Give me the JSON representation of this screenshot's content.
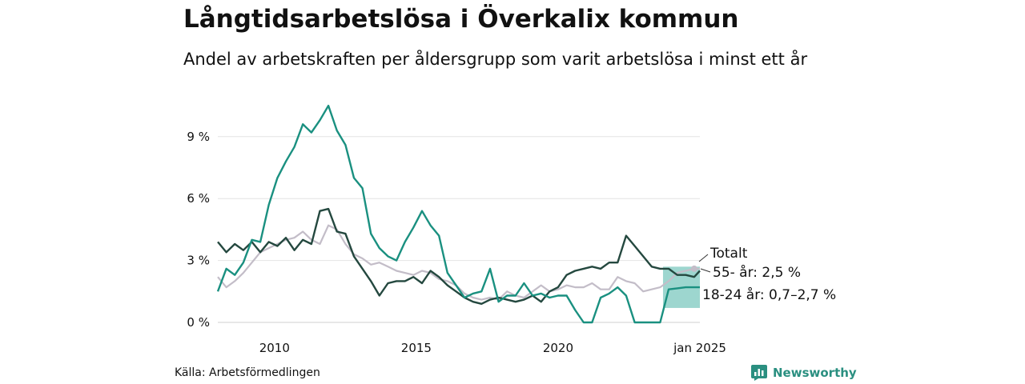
{
  "chart_data": {
    "type": "line",
    "title": "Långtidsarbetslösa i Överkalix kommun",
    "subtitle": "Andel av arbetskraften per åldersgrupp som varit arbetslösa i minst ett år",
    "x_range": [
      2008.0,
      2025.0
    ],
    "y_range": [
      0,
      11.5
    ],
    "y_ticks": [
      {
        "value": 0,
        "label": "0 %"
      },
      {
        "value": 3,
        "label": "3 %"
      },
      {
        "value": 6,
        "label": "6 %"
      },
      {
        "value": 9,
        "label": "9 %"
      }
    ],
    "x_ticks": [
      {
        "value": 2010,
        "label": "2010"
      },
      {
        "value": 2015,
        "label": "2015"
      },
      {
        "value": 2020,
        "label": "2020"
      },
      {
        "value": 2025,
        "label": "jan 2025"
      }
    ],
    "grid": true,
    "series": [
      {
        "name": "Totalt",
        "label": "Totalt",
        "color": "#c3bdc8",
        "x": [
          2008.0,
          2008.3,
          2008.6,
          2008.9,
          2009.2,
          2009.5,
          2009.8,
          2010.1,
          2010.4,
          2010.7,
          2011.0,
          2011.3,
          2011.6,
          2011.9,
          2012.2,
          2012.5,
          2012.8,
          2013.1,
          2013.4,
          2013.7,
          2014.0,
          2014.3,
          2014.6,
          2014.9,
          2015.2,
          2015.5,
          2015.8,
          2016.1,
          2016.4,
          2016.7,
          2017.0,
          2017.3,
          2017.6,
          2017.9,
          2018.2,
          2018.5,
          2018.8,
          2019.1,
          2019.4,
          2019.7,
          2020.0,
          2020.3,
          2020.6,
          2020.9,
          2021.2,
          2021.5,
          2021.8,
          2022.1,
          2022.4,
          2022.7,
          2023.0,
          2023.3,
          2023.6,
          2023.9,
          2024.2,
          2024.5,
          2024.8,
          2025.0
        ],
        "values": [
          2.2,
          1.7,
          2.0,
          2.4,
          2.9,
          3.4,
          3.6,
          3.8,
          4.0,
          4.1,
          4.4,
          4.0,
          3.8,
          4.7,
          4.5,
          3.8,
          3.3,
          3.1,
          2.8,
          2.9,
          2.7,
          2.5,
          2.4,
          2.3,
          2.5,
          2.4,
          2.1,
          2.0,
          1.8,
          1.4,
          1.2,
          1.1,
          1.2,
          1.1,
          1.5,
          1.3,
          1.2,
          1.5,
          1.8,
          1.5,
          1.6,
          1.8,
          1.7,
          1.7,
          1.9,
          1.6,
          1.6,
          2.2,
          2.0,
          1.9,
          1.5,
          1.6,
          1.7,
          2.0,
          2.4,
          2.5,
          2.6,
          2.6
        ]
      },
      {
        "name": "55- år",
        "label": "55- år: 2,5 %",
        "color": "#24483f",
        "x": [
          2008.0,
          2008.3,
          2008.6,
          2008.9,
          2009.2,
          2009.5,
          2009.8,
          2010.1,
          2010.4,
          2010.7,
          2011.0,
          2011.3,
          2011.6,
          2011.9,
          2012.2,
          2012.5,
          2012.8,
          2013.1,
          2013.4,
          2013.7,
          2014.0,
          2014.3,
          2014.6,
          2014.9,
          2015.2,
          2015.5,
          2015.8,
          2016.1,
          2016.4,
          2016.7,
          2017.0,
          2017.3,
          2017.6,
          2017.9,
          2018.2,
          2018.5,
          2018.8,
          2019.1,
          2019.4,
          2019.7,
          2020.0,
          2020.3,
          2020.6,
          2020.9,
          2021.2,
          2021.5,
          2021.8,
          2022.1,
          2022.4,
          2022.7,
          2023.0,
          2023.3,
          2023.6,
          2023.9,
          2024.2,
          2024.5,
          2024.8,
          2025.0
        ],
        "values": [
          3.9,
          3.4,
          3.8,
          3.5,
          3.9,
          3.4,
          3.9,
          3.7,
          4.1,
          3.5,
          4.0,
          3.8,
          5.4,
          5.5,
          4.4,
          4.3,
          3.2,
          2.6,
          2.0,
          1.3,
          1.9,
          2.0,
          2.0,
          2.2,
          1.9,
          2.5,
          2.2,
          1.8,
          1.5,
          1.2,
          1.0,
          0.9,
          1.1,
          1.2,
          1.1,
          1.0,
          1.1,
          1.3,
          1.0,
          1.5,
          1.7,
          2.3,
          2.5,
          2.6,
          2.7,
          2.6,
          2.9,
          2.9,
          4.2,
          3.7,
          3.2,
          2.7,
          2.6,
          2.6,
          2.3,
          2.3,
          2.2,
          2.5
        ]
      },
      {
        "name": "18-24 år",
        "label": "18-24 år: 0,7–2,7 %",
        "color": "#1a9080",
        "x": [
          2008.0,
          2008.3,
          2008.6,
          2008.9,
          2009.2,
          2009.5,
          2009.8,
          2010.1,
          2010.4,
          2010.7,
          2011.0,
          2011.3,
          2011.6,
          2011.9,
          2012.2,
          2012.5,
          2012.8,
          2013.1,
          2013.4,
          2013.7,
          2014.0,
          2014.3,
          2014.6,
          2014.9,
          2015.2,
          2015.5,
          2015.8,
          2016.1,
          2016.4,
          2016.7,
          2017.0,
          2017.3,
          2017.6,
          2017.9,
          2018.2,
          2018.5,
          2018.8,
          2019.1,
          2019.4,
          2019.7,
          2020.0,
          2020.3,
          2020.6,
          2020.9,
          2021.2,
          2021.5,
          2021.8,
          2022.1,
          2022.4,
          2022.7,
          2023.0,
          2023.3,
          2023.6,
          2023.9,
          2024.2,
          2024.5,
          2024.8,
          2025.0
        ],
        "values": [
          1.5,
          2.6,
          2.3,
          2.9,
          4.0,
          3.9,
          5.7,
          7.0,
          7.8,
          8.5,
          9.6,
          9.2,
          9.8,
          10.5,
          9.3,
          8.6,
          7.0,
          6.5,
          4.3,
          3.6,
          3.2,
          3.0,
          3.9,
          4.6,
          5.4,
          4.7,
          4.2,
          2.4,
          1.8,
          1.2,
          1.4,
          1.5,
          2.6,
          1.0,
          1.3,
          1.3,
          1.9,
          1.3,
          1.4,
          1.2,
          1.3,
          1.3,
          0.6,
          0.0,
          0.0,
          1.2,
          1.4,
          1.7,
          1.3,
          0.0,
          0.0,
          0.0,
          0.0,
          1.6,
          1.65,
          1.7,
          1.7,
          1.7
        ]
      }
    ],
    "range_band": {
      "series": "18-24 år",
      "x_start": 2023.7,
      "x_end": 2025.0,
      "low": 0.7,
      "high": 2.7,
      "color": "#8ccfc7"
    },
    "marker": {
      "series": "Totalt",
      "x": 2024.8,
      "value": 2.6
    }
  },
  "source": "Källa: Arbetsförmedlingen",
  "brand": {
    "name": "Newsworthy",
    "icon": "newsworthy-logo-icon",
    "color": "#2a8f80"
  }
}
